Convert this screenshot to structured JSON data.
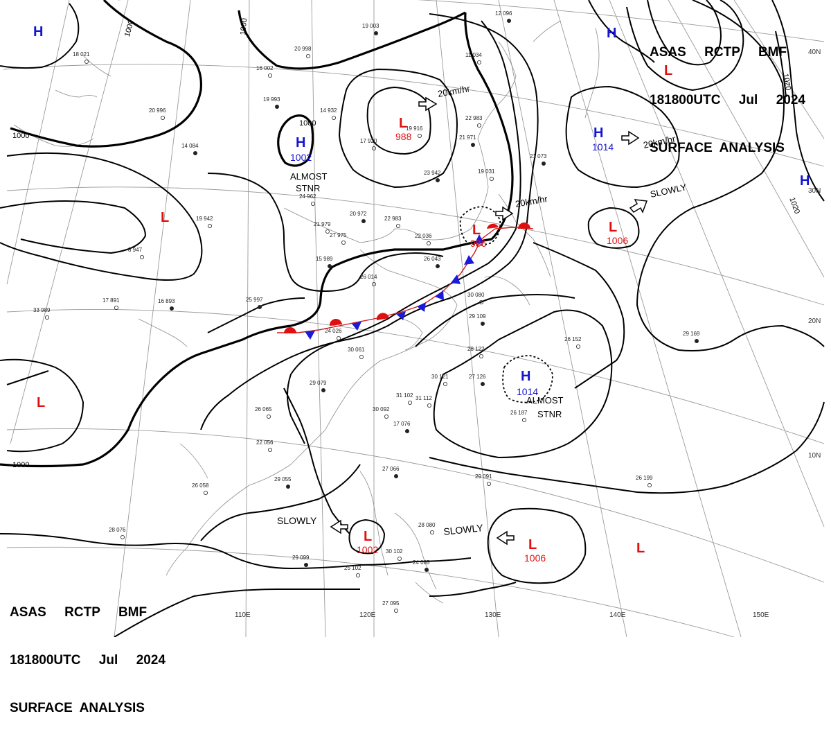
{
  "header": {
    "line1": "ASAS     RCTP     BMF",
    "line2": "181800UTC     Jul     2024",
    "line3": "SURFACE  ANALYSIS"
  },
  "colors": {
    "high": "#1515d0",
    "low": "#e01010",
    "isobar": "#000000",
    "grid": "#9a9a9a"
  },
  "isobar_labels": [
    "1000",
    "1000",
    "1000",
    "1000",
    "1000",
    "1020",
    "1020"
  ],
  "lon_labels": [
    "110E",
    "120E",
    "130E",
    "140E",
    "150E"
  ],
  "lat_labels": [
    "40N",
    "30N",
    "20N",
    "10N"
  ],
  "highs": [
    {
      "pressure": ""
    },
    {
      "pressure": "1002"
    },
    {
      "pressure": "1014"
    },
    {
      "pressure": "1014"
    },
    {
      "pressure": ""
    },
    {
      "pressure": ""
    }
  ],
  "lows": [
    {
      "pressure": "988"
    },
    {
      "pressure": "986"
    },
    {
      "pressure": "1006"
    },
    {
      "pressure": "1002"
    },
    {
      "pressure": "1006"
    },
    {
      "pressure": ""
    },
    {
      "pressure": ""
    },
    {
      "pressure": ""
    },
    {
      "pressure": ""
    }
  ],
  "annotations": {
    "almost_stnr_1_a": "ALMOST",
    "almost_stnr_1_b": "STNR",
    "almost_stnr_2_a": "ALMOST",
    "almost_stnr_2_b": "STNR",
    "speed_low_988": "20km/hr",
    "speed_low_986": "20km/hr",
    "speed_high_1014": "20km/hr",
    "slowly_low_1006_n": "SLOWLY",
    "slowly_low_1002": "SLOWLY",
    "slowly_low_1006_s": "SLOWLY"
  },
  "station_reports": [
    "19 003",
    "20 998",
    "16 002",
    "19 993",
    "14 932",
    "20 996",
    "14 084",
    "17 920",
    "19 916",
    "23 942",
    "24 962",
    "21 979",
    "20 972",
    "22 983",
    "27 975",
    "15 989",
    "8 947",
    "19 942",
    "16 893",
    "17 891",
    "33 989",
    "25 997",
    "26 014",
    "22 036",
    "26 043",
    "24 026",
    "30 061",
    "29 079",
    "26 065",
    "22 056",
    "29 055",
    "26 058",
    "28 076",
    "29 099",
    "25 102",
    "27 095",
    "24 085",
    "28 080",
    "30 102",
    "27 066",
    "31 102",
    "30 092",
    "17 076",
    "31 112",
    "30 121",
    "27 126",
    "26 187",
    "28 122",
    "29 109",
    "30 080",
    "26 152",
    "29 169",
    "26 199",
    "29 091",
    "21 971",
    "22 983",
    "19 031",
    "12 096",
    "11 034",
    "18 021",
    "21 073"
  ]
}
